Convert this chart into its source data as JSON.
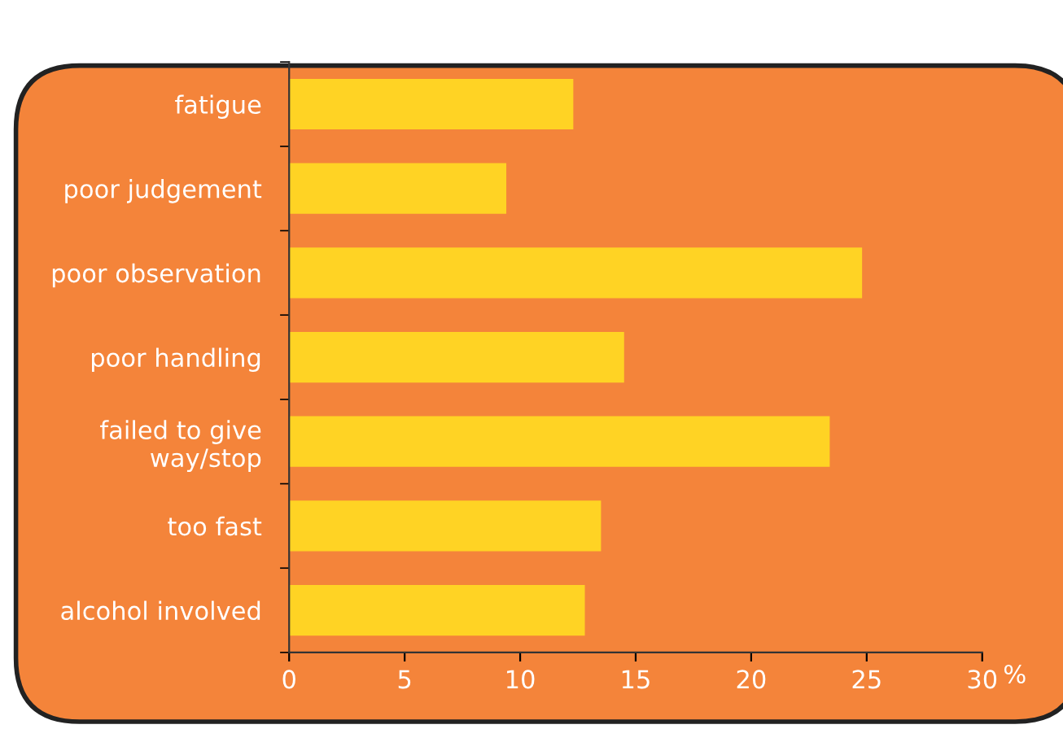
{
  "chart_data": {
    "type": "bar",
    "orientation": "horizontal",
    "xlabel": "%",
    "categories": [
      "fatigue",
      "poor judgement",
      "poor observation",
      "poor handling",
      "failed to give\nway/stop",
      "too fast",
      "alcohol involved"
    ],
    "values": [
      12.3,
      9.4,
      24.8,
      14.5,
      23.4,
      13.5,
      12.8
    ],
    "color": "#ffd324",
    "xlim": [
      0,
      30
    ],
    "xticks": [
      0,
      5,
      10,
      15,
      20,
      25,
      30
    ],
    "grid": false,
    "legend": false
  }
}
